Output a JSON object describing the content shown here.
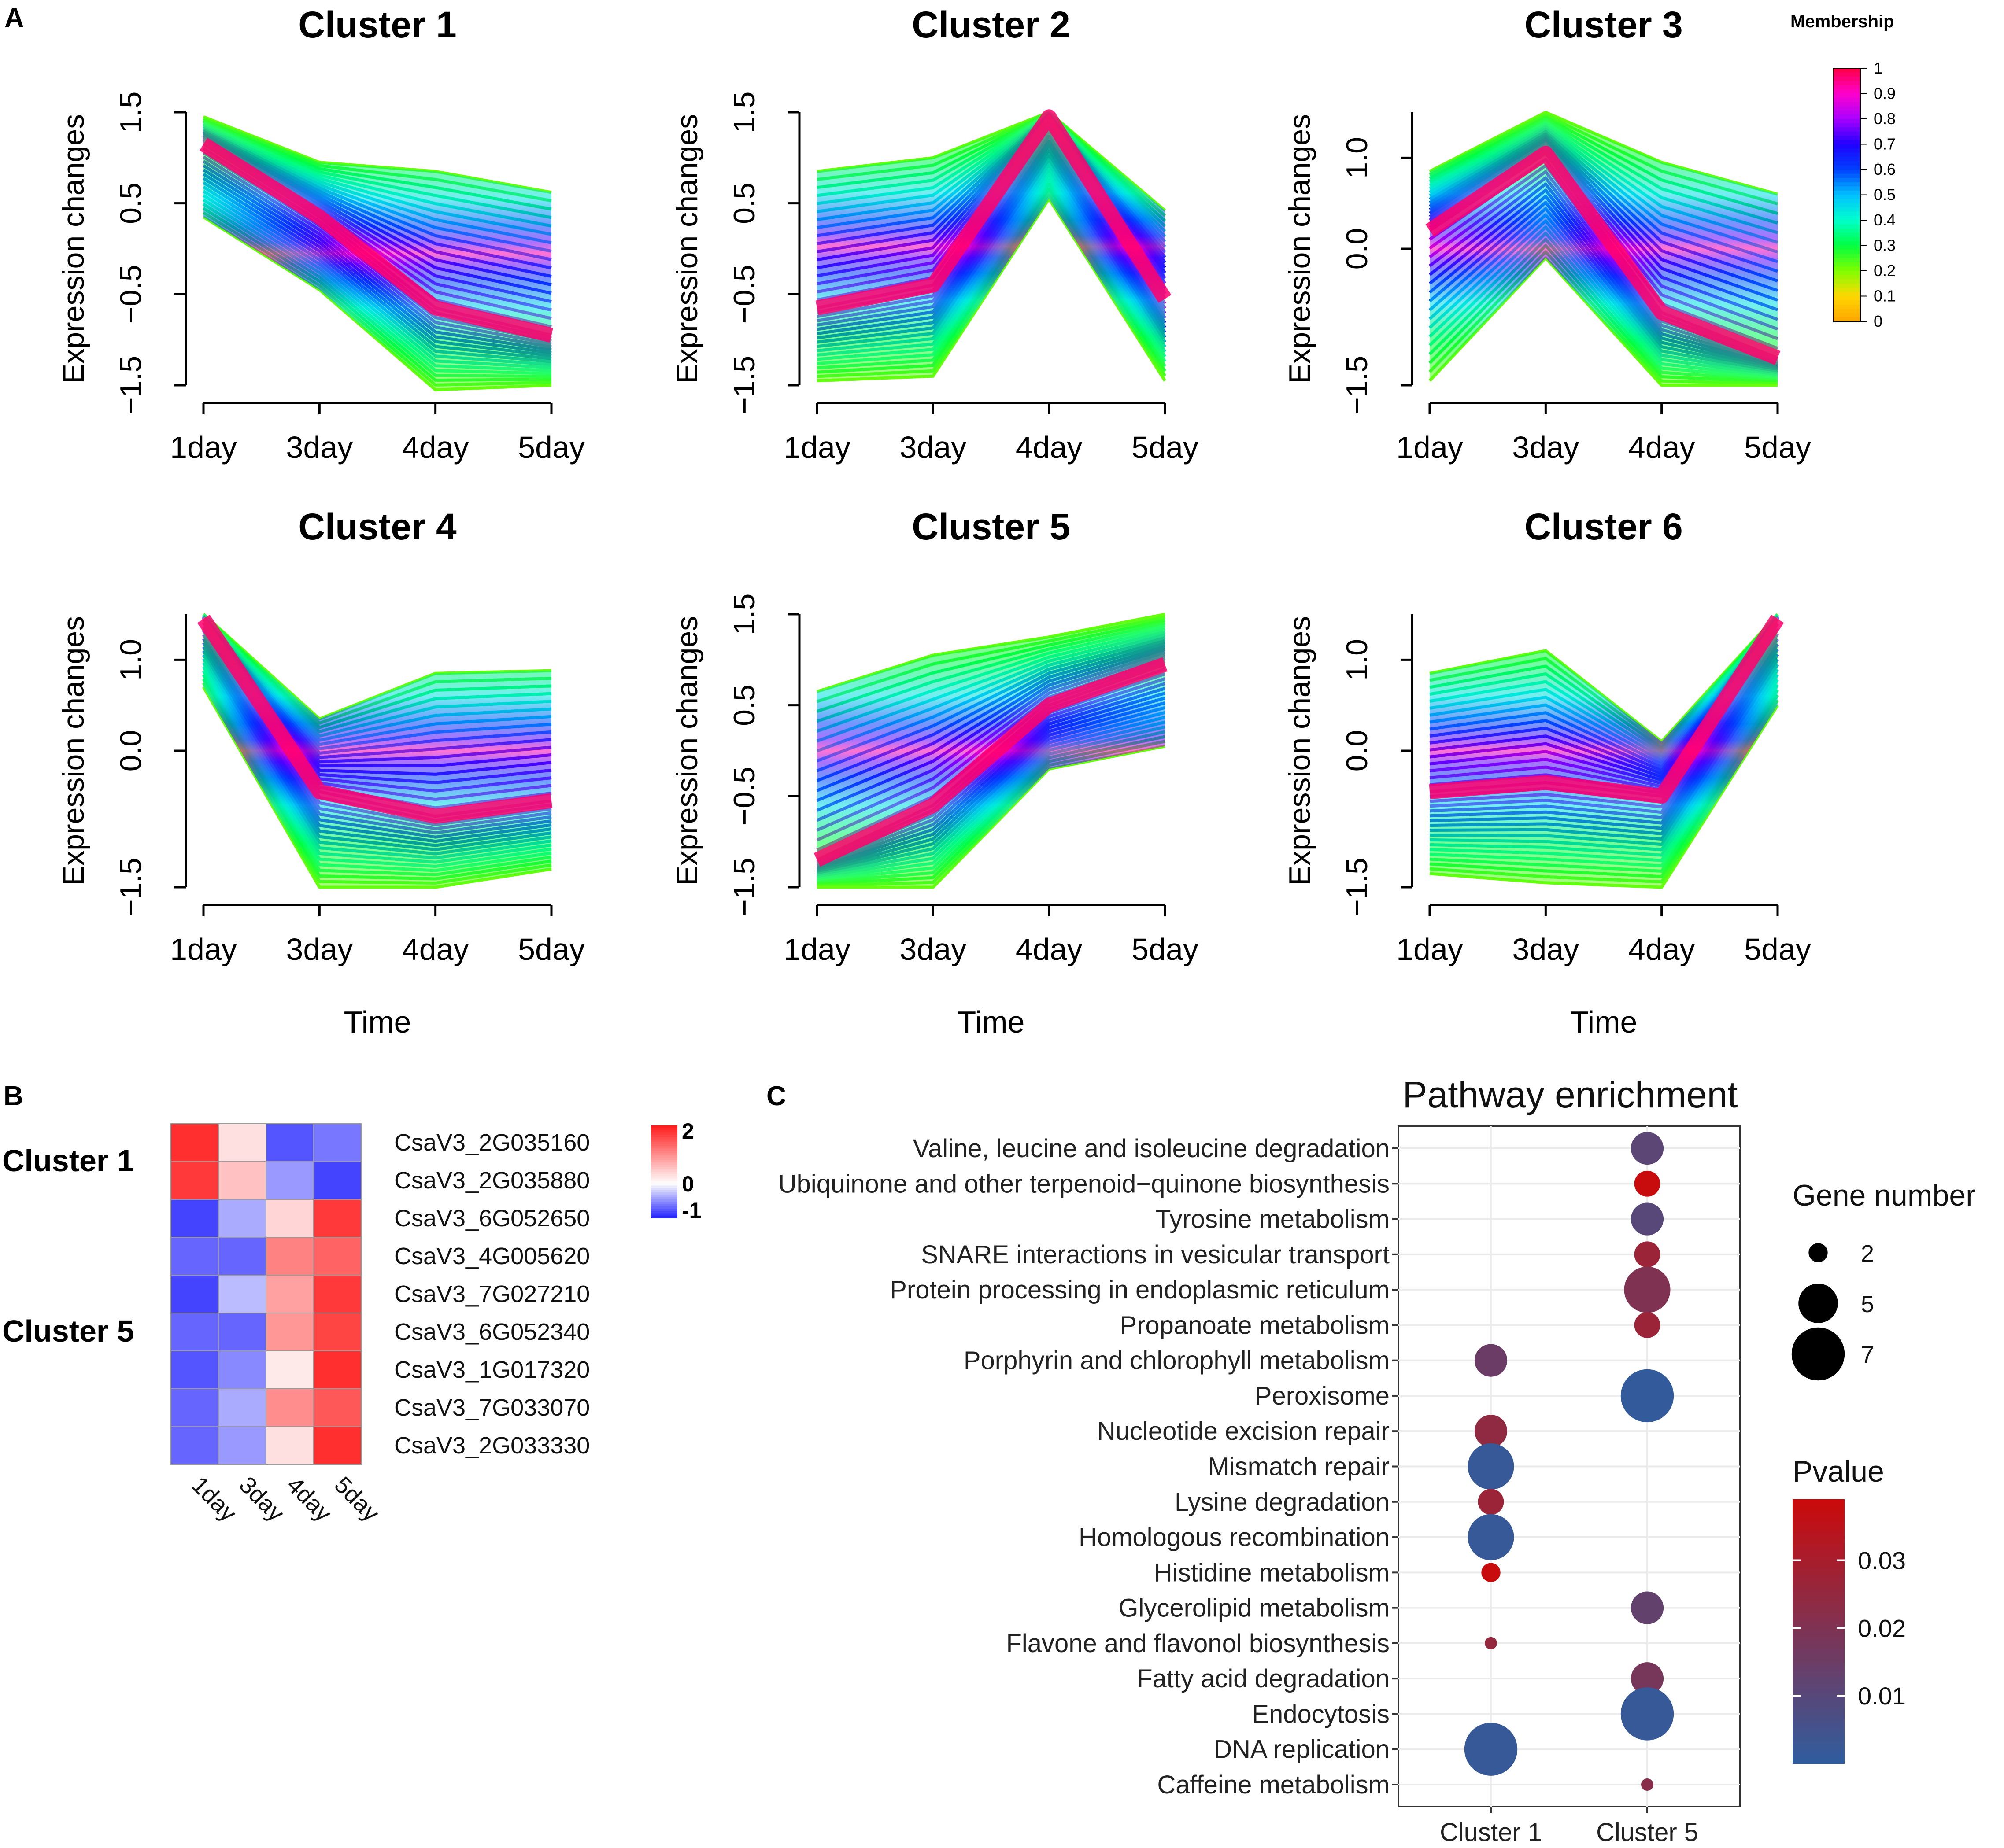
{
  "panel_labels": {
    "a": "A",
    "b": "B",
    "c": "C"
  },
  "chart_data": [
    {
      "type": "line",
      "panel": "A",
      "description": "Fuzzy c-means expression clusters (Mfuzz)",
      "x_ticks": [
        "1day",
        "3day",
        "4day",
        "5day"
      ],
      "xlabel": "Time",
      "ylabel": "Expression changes",
      "colorbar": {
        "title": "Membership",
        "ticks": [
          "0",
          "0.1",
          "0.2",
          "0.3",
          "0.4",
          "0.5",
          "0.6",
          "0.7",
          "0.8",
          "0.9",
          "1"
        ],
        "colors": [
          "#ffa500",
          "#ffd700",
          "#7fff00",
          "#00ff40",
          "#00ffcc",
          "#00c0ff",
          "#0040ff",
          "#2000ff",
          "#aa00ff",
          "#ff00cc",
          "#ff0044"
        ]
      },
      "clusters": [
        {
          "title": "Cluster 1",
          "ylim": [
            -1.5,
            1.5
          ],
          "yticks": [
            "-1.5",
            "-0.5",
            "0.5",
            "1.5"
          ],
          "upper": [
            1.45,
            0.95,
            0.85,
            0.62
          ],
          "lower": [
            0.35,
            -0.45,
            -1.55,
            -1.5
          ],
          "center": [
            1.15,
            0.35,
            -0.65,
            -0.95
          ]
        },
        {
          "title": "Cluster 2",
          "ylim": [
            -1.5,
            1.5
          ],
          "yticks": [
            "-1.5",
            "-0.5",
            "0.5",
            "1.5"
          ],
          "upper": [
            0.85,
            1.0,
            1.5,
            0.42
          ],
          "lower": [
            -1.45,
            -1.4,
            0.55,
            -1.45
          ],
          "center": [
            -0.65,
            -0.4,
            1.45,
            -0.55
          ]
        },
        {
          "title": "Cluster 3",
          "ylim": [
            -1.5,
            1.5
          ],
          "yticks": [
            "-1.5",
            "0.0",
            "1.0"
          ],
          "upper": [
            0.85,
            1.5,
            0.95,
            0.6
          ],
          "lower": [
            -1.45,
            -0.1,
            -1.5,
            -1.5
          ],
          "center": [
            0.2,
            1.05,
            -0.7,
            -1.2
          ]
        },
        {
          "title": "Cluster 4",
          "ylim": [
            -1.5,
            1.5
          ],
          "yticks": [
            "-1.5",
            "0.0",
            "1.0"
          ],
          "upper": [
            1.5,
            0.35,
            0.85,
            0.88
          ],
          "lower": [
            0.7,
            -1.5,
            -1.5,
            -1.3
          ],
          "center": [
            1.45,
            -0.45,
            -0.72,
            -0.55
          ]
        },
        {
          "title": "Cluster 5",
          "ylim": [
            -1.5,
            1.5
          ],
          "yticks": [
            "-1.5",
            "-0.5",
            "0.5",
            "1.5"
          ],
          "upper": [
            0.65,
            1.05,
            1.25,
            1.5
          ],
          "lower": [
            -1.5,
            -1.5,
            -0.2,
            0.05
          ],
          "center": [
            -1.2,
            -0.6,
            0.5,
            0.95
          ]
        },
        {
          "title": "Cluster 6",
          "ylim": [
            -1.5,
            1.5
          ],
          "yticks": [
            "-1.5",
            "0.0",
            "1.0"
          ],
          "upper": [
            0.85,
            1.1,
            0.1,
            1.5
          ],
          "lower": [
            -1.35,
            -1.45,
            -1.5,
            0.5
          ],
          "center": [
            -0.45,
            -0.35,
            -0.5,
            1.45
          ]
        }
      ]
    },
    {
      "type": "heatmap",
      "panel": "B",
      "columns": [
        "1day",
        "3day",
        "4day",
        "5day"
      ],
      "rows": [
        "CsaV3_2G035160",
        "CsaV3_2G035880",
        "CsaV3_6G052650",
        "CsaV3_4G005620",
        "CsaV3_7G027210",
        "CsaV3_6G052340",
        "CsaV3_1G017320",
        "CsaV3_7G033070",
        "CsaV3_2G033330"
      ],
      "row_groups": [
        {
          "label": "Cluster 1",
          "rows": [
            0,
            1
          ]
        },
        {
          "label": "Cluster 5",
          "rows": [
            2,
            3,
            4,
            5,
            6,
            7,
            8
          ]
        }
      ],
      "values": [
        [
          2.0,
          0.3,
          -1.0,
          -0.8
        ],
        [
          1.9,
          0.6,
          -0.6,
          -1.1
        ],
        [
          -1.1,
          -0.5,
          0.4,
          1.9
        ],
        [
          -0.9,
          -0.9,
          1.2,
          1.5
        ],
        [
          -1.1,
          -0.4,
          0.9,
          1.9
        ],
        [
          -0.9,
          -0.9,
          1.0,
          1.8
        ],
        [
          -1.0,
          -0.7,
          0.2,
          2.0
        ],
        [
          -0.9,
          -0.5,
          1.1,
          1.6
        ],
        [
          -0.9,
          -0.6,
          0.3,
          2.0
        ]
      ],
      "legend": {
        "ticks": [
          "2",
          "0",
          "-1"
        ],
        "range": [
          -1.3,
          2.2
        ]
      }
    },
    {
      "type": "scatter",
      "panel": "C",
      "title": "Pathway enrichment",
      "x_categories": [
        "Cluster 1",
        "Cluster 5"
      ],
      "pathways": [
        "Valine, leucine and isoleucine degradation",
        "Ubiquinone and other terpenoid−quinone biosynthesis",
        "Tyrosine metabolism",
        "SNARE interactions in vesicular transport",
        "Protein processing in endoplasmic reticulum",
        "Propanoate metabolism",
        "Porphyrin and chlorophyll metabolism",
        "Peroxisome",
        "Nucleotide excision repair",
        "Mismatch repair",
        "Lysine degradation",
        "Homologous recombination",
        "Histidine metabolism",
        "Glycerolipid metabolism",
        "Flavone and flavonol biosynthesis",
        "Fatty acid degradation",
        "Endocytosis",
        "DNA replication",
        "Caffeine metabolism"
      ],
      "points": [
        {
          "pathway": "Valine, leucine and isoleucine degradation",
          "cluster": "Cluster 5",
          "genes": 4,
          "pvalue": 0.011
        },
        {
          "pathway": "Ubiquinone and other terpenoid−quinone biosynthesis",
          "cluster": "Cluster 5",
          "genes": 3,
          "pvalue": 0.038
        },
        {
          "pathway": "Tyrosine metabolism",
          "cluster": "Cluster 5",
          "genes": 4,
          "pvalue": 0.01
        },
        {
          "pathway": "SNARE interactions in vesicular transport",
          "cluster": "Cluster 5",
          "genes": 3,
          "pvalue": 0.027
        },
        {
          "pathway": "Protein processing in endoplasmic reticulum",
          "cluster": "Cluster 5",
          "genes": 6,
          "pvalue": 0.02
        },
        {
          "pathway": "Propanoate metabolism",
          "cluster": "Cluster 5",
          "genes": 3,
          "pvalue": 0.027
        },
        {
          "pathway": "Porphyrin and chlorophyll metabolism",
          "cluster": "Cluster 1",
          "genes": 4,
          "pvalue": 0.015
        },
        {
          "pathway": "Peroxisome",
          "cluster": "Cluster 5",
          "genes": 7,
          "pvalue": 0.001
        },
        {
          "pathway": "Nucleotide excision repair",
          "cluster": "Cluster 1",
          "genes": 4,
          "pvalue": 0.024
        },
        {
          "pathway": "Mismatch repair",
          "cluster": "Cluster 1",
          "genes": 6,
          "pvalue": 0.002
        },
        {
          "pathway": "Lysine degradation",
          "cluster": "Cluster 1",
          "genes": 3,
          "pvalue": 0.027
        },
        {
          "pathway": "Homologous recombination",
          "cluster": "Cluster 1",
          "genes": 6,
          "pvalue": 0.002
        },
        {
          "pathway": "Histidine metabolism",
          "cluster": "Cluster 1",
          "genes": 2,
          "pvalue": 0.038
        },
        {
          "pathway": "Glycerolipid metabolism",
          "cluster": "Cluster 5",
          "genes": 4,
          "pvalue": 0.013
        },
        {
          "pathway": "Flavone and flavonol biosynthesis",
          "cluster": "Cluster 1",
          "genes": 1,
          "pvalue": 0.025
        },
        {
          "pathway": "Fatty acid degradation",
          "cluster": "Cluster 5",
          "genes": 4,
          "pvalue": 0.018
        },
        {
          "pathway": "Endocytosis",
          "cluster": "Cluster 5",
          "genes": 7,
          "pvalue": 0.002
        },
        {
          "pathway": "DNA replication",
          "cluster": "Cluster 1",
          "genes": 7,
          "pvalue": 0.002
        },
        {
          "pathway": "Caffeine metabolism",
          "cluster": "Cluster 5",
          "genes": 1,
          "pvalue": 0.022
        }
      ],
      "size_legend": {
        "title": "Gene number",
        "values": [
          2,
          5,
          7
        ]
      },
      "color_legend": {
        "title": "Pvalue",
        "ticks": [
          0.01,
          0.02,
          0.03
        ],
        "tick_labels": [
          "0.01",
          "0.02",
          "0.03"
        ],
        "range": [
          0.0,
          0.039
        ],
        "low_color": "#2f5d9f",
        "high_color": "#cc0a0a"
      }
    }
  ]
}
